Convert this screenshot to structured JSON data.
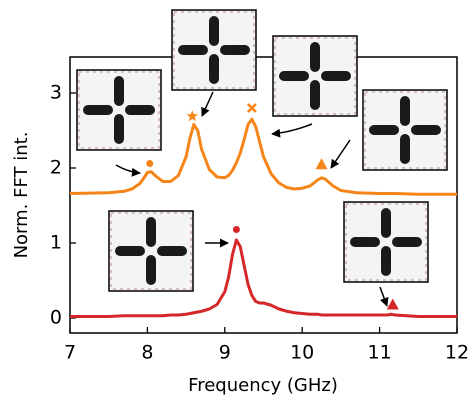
{
  "chart_data": {
    "type": "line",
    "xlabel": "Frequency (GHz)",
    "ylabel": "Norm. FFT int.",
    "xlim": [
      7,
      12
    ],
    "ylim": [
      -0.2,
      3.48
    ],
    "xticks": [
      7,
      8,
      9,
      10,
      11,
      12
    ],
    "yticks": [
      0,
      1,
      2,
      3
    ],
    "x": [
      7.0,
      7.5,
      7.7,
      7.8,
      7.9,
      7.95,
      8.0,
      8.05,
      8.1,
      8.2,
      8.3,
      8.4,
      8.5,
      8.55,
      8.6,
      8.65,
      8.7,
      8.8,
      8.9,
      9.0,
      9.05,
      9.1,
      9.15,
      9.2,
      9.25,
      9.3,
      9.35,
      9.4,
      9.45,
      9.5,
      9.6,
      9.7,
      9.8,
      9.9,
      10.0,
      10.1,
      10.2,
      10.25,
      10.3,
      10.4,
      10.5,
      10.7,
      11.0,
      11.1,
      11.15,
      11.2,
      11.5,
      12.0
    ],
    "series": [
      {
        "color": "#f58518",
        "values": [
          1.66,
          1.67,
          1.69,
          1.72,
          1.79,
          1.86,
          1.94,
          1.95,
          1.9,
          1.82,
          1.82,
          1.9,
          2.15,
          2.4,
          2.58,
          2.5,
          2.25,
          1.98,
          1.88,
          1.87,
          1.9,
          1.97,
          2.07,
          2.2,
          2.38,
          2.58,
          2.65,
          2.55,
          2.35,
          2.15,
          1.92,
          1.8,
          1.74,
          1.72,
          1.73,
          1.76,
          1.84,
          1.87,
          1.85,
          1.76,
          1.7,
          1.67,
          1.66,
          1.66,
          1.66,
          1.66,
          1.65,
          1.65
        ]
      },
      {
        "color": "#d62728",
        "values": [
          0.02,
          0.02,
          0.03,
          0.03,
          0.03,
          0.03,
          0.03,
          0.03,
          0.03,
          0.03,
          0.04,
          0.04,
          0.05,
          0.06,
          0.07,
          0.08,
          0.09,
          0.12,
          0.18,
          0.35,
          0.55,
          0.85,
          1.04,
          0.95,
          0.7,
          0.45,
          0.3,
          0.22,
          0.2,
          0.2,
          0.17,
          0.12,
          0.09,
          0.07,
          0.06,
          0.05,
          0.05,
          0.04,
          0.04,
          0.04,
          0.04,
          0.04,
          0.04,
          0.04,
          0.05,
          0.04,
          0.02,
          0.02
        ]
      }
    ],
    "markers": [
      {
        "x": 8.03,
        "y": 2.06,
        "shape": "circle",
        "color": "#f58518"
      },
      {
        "x": 8.58,
        "y": 2.69,
        "shape": "star",
        "color": "#f58518"
      },
      {
        "x": 9.35,
        "y": 2.8,
        "shape": "x",
        "color": "#f58518"
      },
      {
        "x": 10.25,
        "y": 2.05,
        "shape": "triangle",
        "color": "#f58518"
      },
      {
        "x": 9.15,
        "y": 1.18,
        "shape": "circle",
        "color": "#d62728"
      },
      {
        "x": 11.17,
        "y": 0.18,
        "shape": "triangle",
        "color": "#d62728"
      }
    ]
  }
}
